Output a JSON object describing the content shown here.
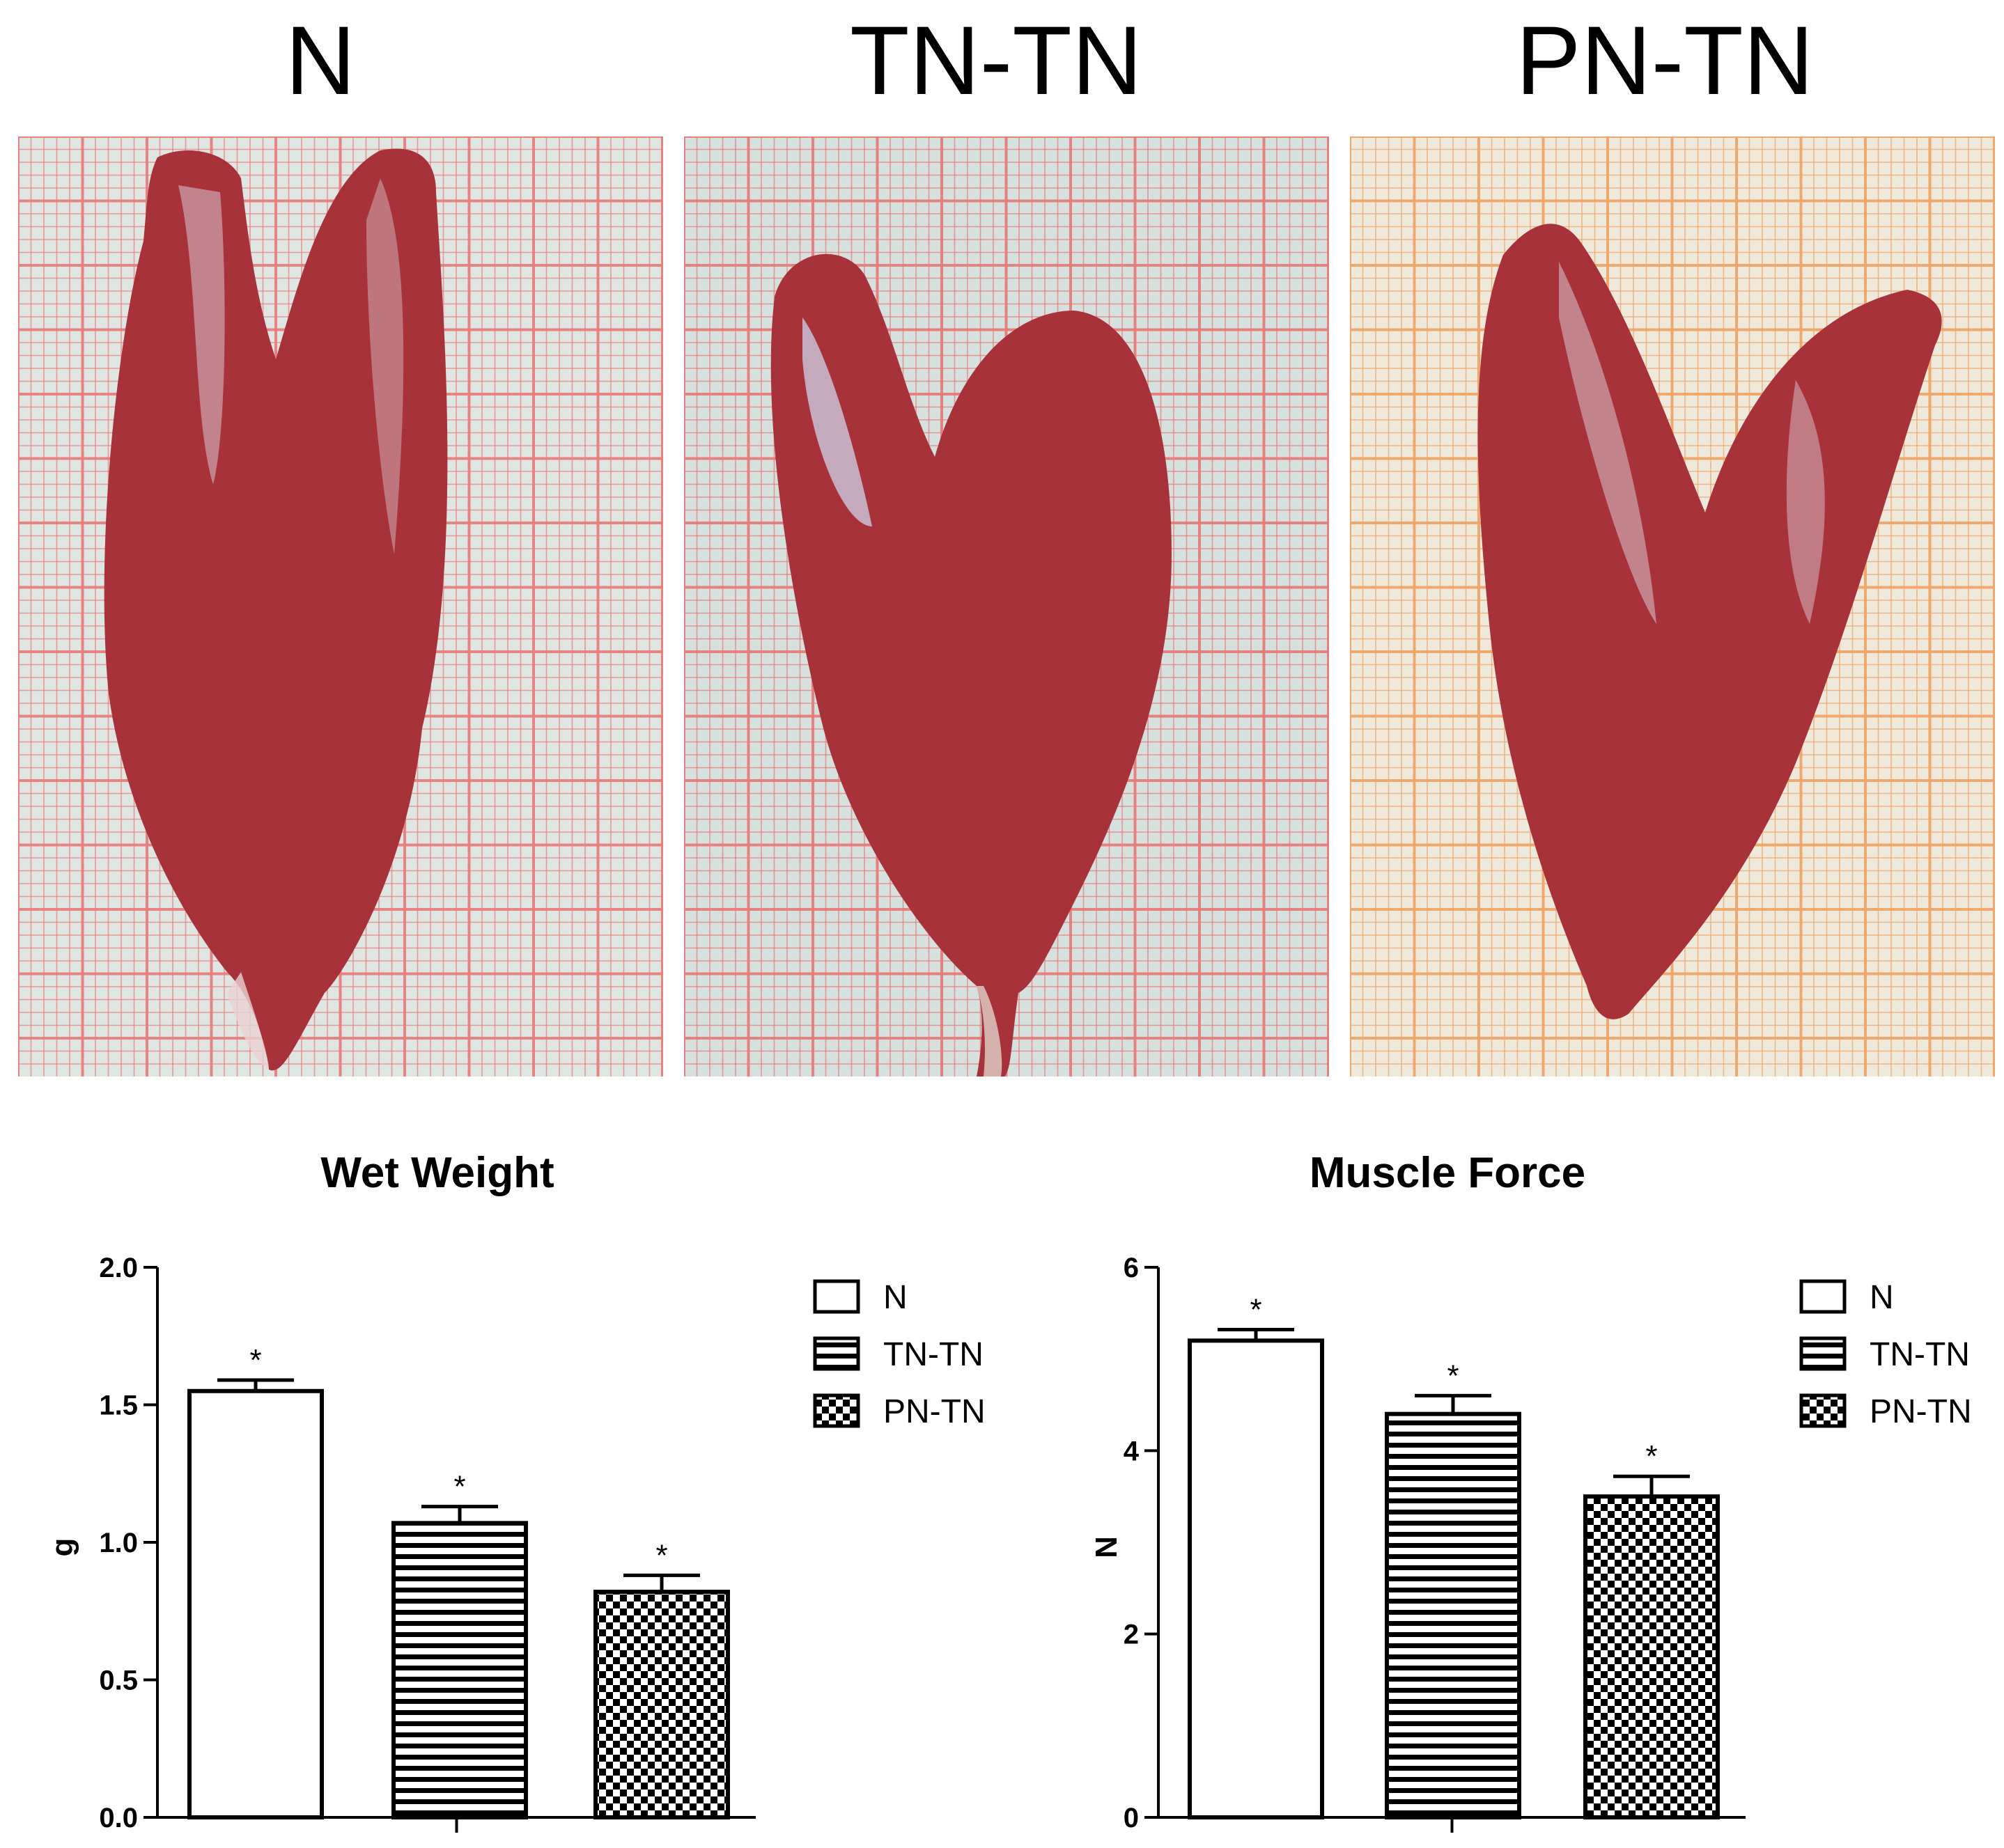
{
  "panels": [
    {
      "label": "N",
      "paper": "#dfe6e2",
      "grid": "#e87e7e"
    },
    {
      "label": "TN-TN",
      "paper": "#d6e0dc",
      "grid": "#e67c7c"
    },
    {
      "label": "PN-TN",
      "paper": "#efe9dc",
      "grid": "#f0a66a"
    }
  ],
  "muscle_color": "#a8323a",
  "chart_data": [
    {
      "type": "bar",
      "title": "Wet Weight",
      "xlabel": "",
      "ylabel": "g",
      "ylim": [
        0,
        2.0
      ],
      "yticks": [
        "0.0",
        "0.5",
        "1.0",
        "1.5",
        "2.0"
      ],
      "ytick_values": [
        0,
        0.5,
        1.0,
        1.5,
        2.0
      ],
      "categories": [
        "N",
        "TN-TN",
        "PN-TN"
      ],
      "values": [
        1.55,
        1.07,
        0.82
      ],
      "errors": [
        0.04,
        0.06,
        0.06
      ],
      "annotations": [
        "*",
        "*",
        "*"
      ],
      "fills": [
        "open",
        "horizontal-stripes",
        "checkerboard"
      ],
      "legend": [
        "N",
        "TN-TN",
        "PN-TN"
      ],
      "legend_position": "top-right"
    },
    {
      "type": "bar",
      "title": "Muscle Force",
      "xlabel": "",
      "ylabel": "N",
      "ylim": [
        0,
        6
      ],
      "yticks": [
        "0",
        "2",
        "4",
        "6"
      ],
      "ytick_values": [
        0,
        2,
        4,
        6
      ],
      "categories": [
        "N",
        "TN-TN",
        "PN-TN"
      ],
      "values": [
        5.2,
        4.4,
        3.5
      ],
      "errors": [
        0.12,
        0.2,
        0.22
      ],
      "annotations": [
        "*",
        "*",
        "*"
      ],
      "fills": [
        "open",
        "horizontal-stripes",
        "checkerboard"
      ],
      "legend": [
        "N",
        "TN-TN",
        "PN-TN"
      ],
      "legend_position": "top-right"
    }
  ]
}
